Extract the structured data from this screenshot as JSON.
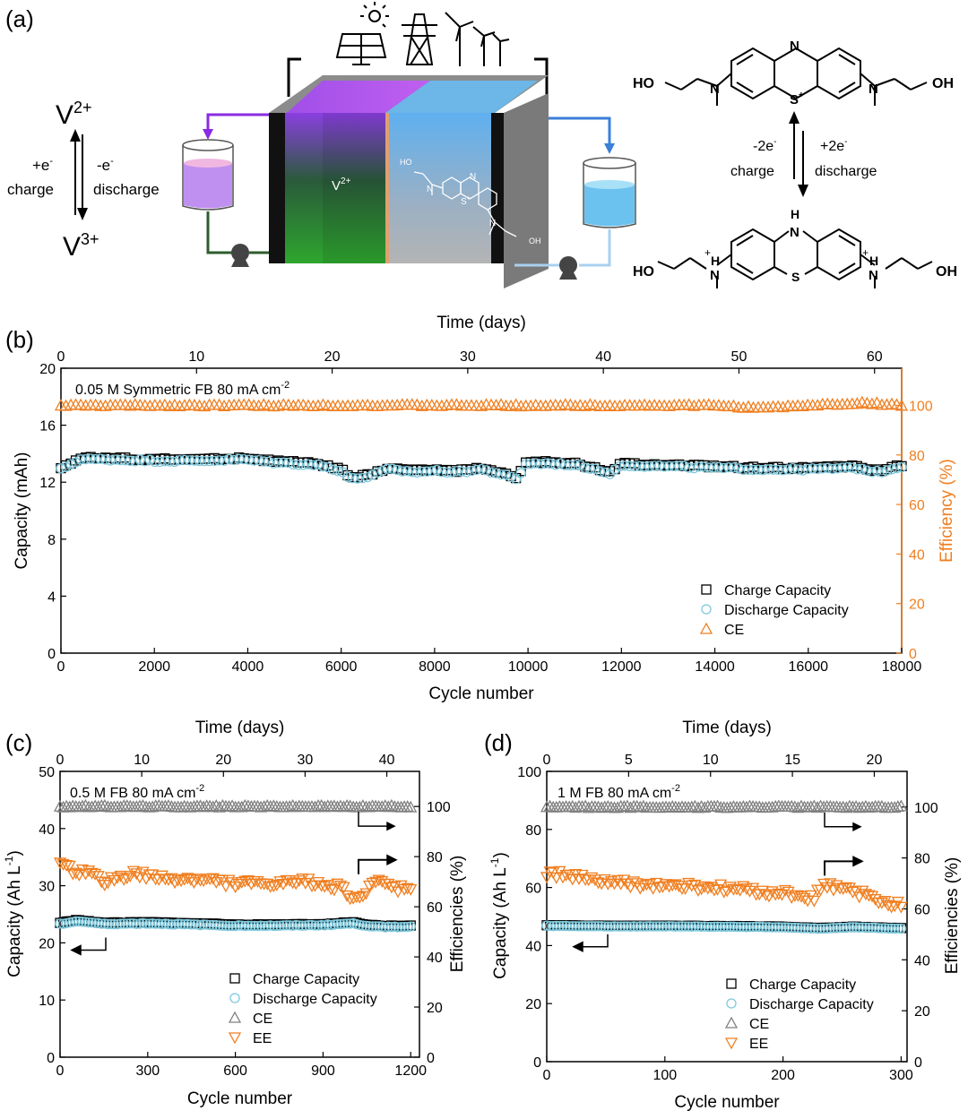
{
  "panel_a": {
    "label": "(a)",
    "vanadium": {
      "top": "V",
      "top_sup": "2+",
      "bottom": "V",
      "bottom_sup": "3+",
      "left_top": "+e",
      "left_top_sup": "-",
      "left_bottom": "charge",
      "right_top": "-e",
      "right_top_sup": "-",
      "right_bottom": "discharge"
    },
    "cell_label": "V",
    "cell_label_sup": "2+",
    "mb_top": {
      "left_oh": "HO",
      "right_oh": "OH",
      "n_top": "N",
      "n_left": "N",
      "n_right": "N",
      "s": "S",
      "s_sup": "+"
    },
    "mb_bottom": {
      "left_oh": "HO",
      "right_oh": "OH",
      "nh_top": "H",
      "nh_top_n": "N",
      "n_left": "N",
      "n_right": "N",
      "h_left": "H",
      "h_right": "H",
      "s": "S",
      "plus": "+"
    },
    "mb_arrow": {
      "left_top": "-2e",
      "left_top_sup": "-",
      "left_bottom": "charge",
      "right_top": "+2e",
      "right_top_sup": "-",
      "right_bottom": "discharge"
    },
    "inset_mol": {
      "ho": "HO",
      "oh": "OH",
      "n1": "N",
      "n2": "N",
      "s": "S",
      "s_sup": "+",
      "n3": "N"
    }
  },
  "colors": {
    "black": "#000000",
    "blue": "#7ec8dc",
    "orange": "#f07f20",
    "gray": "#808080",
    "purple": "#8a2be2",
    "cellBlue": "#6cb6e8"
  },
  "chart_data": [
    {
      "id": "b",
      "label": "(b)",
      "type": "scatter",
      "title": "0.05 M Symmetric FB",
      "title2": "80 mA cm",
      "title2_sup": "-2",
      "xlabel": "Cycle number",
      "xlim": [
        0,
        18000
      ],
      "xticks": [
        0,
        2000,
        4000,
        6000,
        8000,
        10000,
        12000,
        14000,
        16000,
        18000
      ],
      "ylabel": "Capacity (mAh)",
      "ylim": [
        0,
        20
      ],
      "yticks": [
        0,
        4,
        8,
        12,
        16,
        20
      ],
      "y2label": "Efficiency (%)",
      "y2lim": [
        0,
        115
      ],
      "y2ticks": [
        0,
        20,
        40,
        60,
        80,
        100
      ],
      "toplabel": "Time (days)",
      "toplim": [
        0,
        62
      ],
      "topticks": [
        0,
        10,
        20,
        30,
        40,
        50,
        60
      ],
      "legend": [
        "Charge Capacity",
        "Discharge Capacity",
        "CE"
      ],
      "series": [
        {
          "name": "Charge Capacity",
          "axis": "left",
          "marker": "square",
          "color": "#000000",
          "x": [
            0,
            400,
            1000,
            2000,
            3000,
            3900,
            4500,
            5500,
            6000,
            6200,
            6600,
            7000,
            7600,
            8000,
            8500,
            9000,
            9500,
            9800,
            9900,
            10500,
            11000,
            11500,
            11700,
            12000,
            13000,
            14000,
            15000,
            16000,
            17000,
            17500,
            18000
          ],
          "y": [
            13.0,
            13.7,
            13.7,
            13.6,
            13.6,
            13.7,
            13.5,
            13.3,
            12.9,
            12.3,
            12.5,
            13.0,
            12.8,
            12.9,
            12.8,
            13.0,
            12.6,
            12.2,
            13.4,
            13.4,
            13.3,
            13.0,
            12.6,
            13.3,
            13.2,
            13.1,
            13.0,
            13.0,
            13.1,
            12.8,
            13.2
          ]
        },
        {
          "name": "Discharge Capacity",
          "axis": "left",
          "marker": "circle",
          "color": "#7ec8dc",
          "x": [
            0,
            400,
            1000,
            2000,
            3000,
            3900,
            4500,
            5500,
            6000,
            6200,
            6600,
            7000,
            7600,
            8000,
            8500,
            9000,
            9500,
            9800,
            9900,
            10500,
            11000,
            11500,
            11700,
            12000,
            13000,
            14000,
            15000,
            16000,
            17000,
            17500,
            18000
          ],
          "y": [
            12.9,
            13.6,
            13.6,
            13.5,
            13.5,
            13.6,
            13.4,
            13.2,
            12.8,
            12.2,
            12.4,
            12.9,
            12.7,
            12.8,
            12.7,
            12.9,
            12.5,
            12.1,
            13.3,
            13.3,
            13.2,
            12.9,
            12.5,
            13.2,
            13.1,
            13.0,
            12.9,
            12.9,
            13.0,
            12.7,
            13.1
          ]
        },
        {
          "name": "CE",
          "axis": "right",
          "marker": "triangle",
          "color": "#f07f20",
          "x": [
            0,
            2000,
            4000,
            6000,
            8000,
            10000,
            12000,
            14000,
            15000,
            16000,
            17200,
            18000
          ],
          "y": [
            100,
            100,
            100,
            100,
            100,
            100,
            100,
            100,
            99,
            100,
            101,
            100
          ]
        }
      ]
    },
    {
      "id": "c",
      "label": "(c)",
      "type": "scatter",
      "title": "0.5 M FB",
      "title2": "80 mA cm",
      "title2_sup": "-2",
      "xlabel": "Cycle number",
      "xlim": [
        0,
        1230
      ],
      "xticks": [
        0,
        300,
        600,
        900,
        1200
      ],
      "ylabel": "Capacity (Ah L",
      "ylabel_sup": "-1",
      "ylabel_end": ")",
      "ylim": [
        0,
        50
      ],
      "yticks": [
        0,
        10,
        20,
        30,
        40,
        50
      ],
      "y2label": "Efficiencies (%)",
      "y2lim": [
        0,
        114
      ],
      "y2ticks": [
        0,
        20,
        40,
        60,
        80,
        100
      ],
      "toplabel": "Time (days)",
      "toplim": [
        0,
        44
      ],
      "topticks": [
        0,
        10,
        20,
        30,
        40
      ],
      "legend": [
        "Charge Capacity",
        "Discharge Capacity",
        "CE",
        "EE"
      ],
      "series": [
        {
          "name": "Charge Capacity",
          "axis": "left",
          "marker": "square",
          "color": "#000000",
          "x": [
            0,
            60,
            150,
            300,
            450,
            600,
            750,
            900,
            1000,
            1050,
            1100,
            1200
          ],
          "y": [
            23.5,
            24.0,
            23.5,
            23.6,
            23.4,
            23.2,
            23.2,
            23.3,
            23.6,
            23.2,
            23.0,
            23.0
          ]
        },
        {
          "name": "Discharge Capacity",
          "axis": "left",
          "marker": "circle",
          "color": "#7ec8dc",
          "x": [
            0,
            60,
            150,
            300,
            450,
            600,
            750,
            900,
            1000,
            1050,
            1100,
            1200
          ],
          "y": [
            23.3,
            23.8,
            23.3,
            23.4,
            23.2,
            23.0,
            23.0,
            23.1,
            23.4,
            23.0,
            22.8,
            22.8
          ]
        },
        {
          "name": "CE",
          "axis": "right",
          "marker": "triangle",
          "color": "#808080",
          "x": [
            0,
            200,
            400,
            600,
            800,
            1000,
            1200
          ],
          "y": [
            100,
            100,
            100,
            100,
            100,
            100,
            100
          ]
        },
        {
          "name": "EE",
          "axis": "right",
          "marker": "triangle-down",
          "color": "#f07f20",
          "x": [
            0,
            100,
            150,
            250,
            350,
            450,
            550,
            650,
            750,
            850,
            950,
            1030,
            1060,
            1100,
            1150,
            1200
          ],
          "y": [
            76,
            73,
            70,
            73,
            71,
            71,
            70,
            69,
            69,
            70,
            68,
            62,
            70,
            69,
            67,
            68
          ]
        }
      ]
    },
    {
      "id": "d",
      "label": "(d)",
      "type": "scatter",
      "title": "1 M FB",
      "title2": "80 mA cm",
      "title2_sup": "-2",
      "xlabel": "Cycle number",
      "xlim": [
        0,
        305
      ],
      "xticks": [
        0,
        100,
        200,
        300
      ],
      "ylabel": "Capacity (Ah L",
      "ylabel_sup": "-1",
      "ylabel_end": ")",
      "ylim": [
        0,
        100
      ],
      "yticks": [
        0,
        20,
        40,
        60,
        80,
        100
      ],
      "y2label": "Efficiencies (%)",
      "y2lim": [
        0,
        114
      ],
      "y2ticks": [
        0,
        20,
        40,
        60,
        80,
        100
      ],
      "toplabel": "Time (days)",
      "toplim": [
        0,
        22
      ],
      "topticks": [
        0,
        5,
        10,
        15,
        20
      ],
      "legend": [
        "Charge Capacity",
        "Discharge Capacity",
        "CE",
        "EE"
      ],
      "series": [
        {
          "name": "Charge Capacity",
          "axis": "left",
          "marker": "square",
          "color": "#000000",
          "x": [
            0,
            50,
            100,
            150,
            200,
            230,
            260,
            300
          ],
          "y": [
            47.0,
            46.8,
            46.8,
            46.7,
            46.5,
            46.0,
            46.5,
            46.0
          ]
        },
        {
          "name": "Discharge Capacity",
          "axis": "left",
          "marker": "circle",
          "color": "#7ec8dc",
          "x": [
            0,
            50,
            100,
            150,
            200,
            230,
            260,
            300
          ],
          "y": [
            46.8,
            46.6,
            46.6,
            46.5,
            46.3,
            45.8,
            46.3,
            45.8
          ]
        },
        {
          "name": "CE",
          "axis": "right",
          "marker": "triangle",
          "color": "#808080",
          "x": [
            0,
            50,
            100,
            150,
            200,
            250,
            300
          ],
          "y": [
            100,
            100,
            100,
            100,
            100,
            100,
            100
          ]
        },
        {
          "name": "EE",
          "axis": "right",
          "marker": "triangle-down",
          "color": "#f07f20",
          "x": [
            0,
            30,
            60,
            100,
            150,
            200,
            225,
            235,
            260,
            280,
            300
          ],
          "y": [
            74,
            72,
            70,
            69,
            68,
            66,
            64,
            69,
            67,
            63,
            62
          ]
        }
      ]
    }
  ]
}
